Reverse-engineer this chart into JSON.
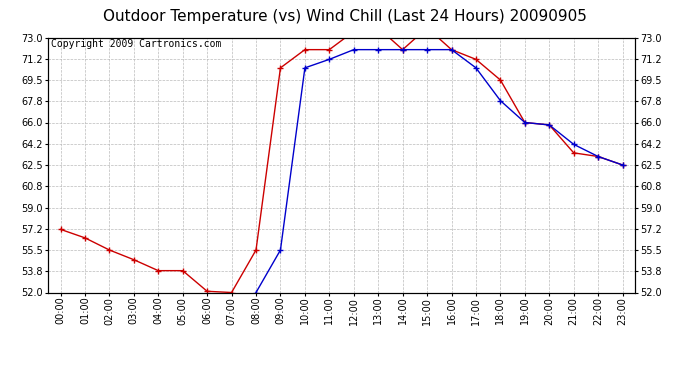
{
  "title": "Outdoor Temperature (vs) Wind Chill (Last 24 Hours) 20090905",
  "copyright": "Copyright 2009 Cartronics.com",
  "hours": [
    "00:00",
    "01:00",
    "02:00",
    "03:00",
    "04:00",
    "05:00",
    "06:00",
    "07:00",
    "08:00",
    "09:00",
    "10:00",
    "11:00",
    "12:00",
    "13:00",
    "14:00",
    "15:00",
    "16:00",
    "17:00",
    "18:00",
    "19:00",
    "20:00",
    "21:00",
    "22:00",
    "23:00"
  ],
  "temp": [
    57.2,
    56.5,
    55.5,
    54.7,
    53.8,
    53.8,
    52.1,
    52.0,
    55.5,
    70.5,
    72.0,
    72.0,
    73.5,
    73.8,
    72.0,
    73.8,
    72.0,
    71.2,
    69.5,
    66.0,
    65.8,
    63.5,
    63.2,
    62.5
  ],
  "windchill": [
    null,
    null,
    null,
    null,
    null,
    null,
    null,
    null,
    52.0,
    55.5,
    70.5,
    71.2,
    72.0,
    72.0,
    72.0,
    72.0,
    72.0,
    70.5,
    67.8,
    66.0,
    65.8,
    64.2,
    63.2,
    62.5
  ],
  "temp_color": "#cc0000",
  "windchill_color": "#0000cc",
  "bg_color": "#ffffff",
  "plot_bg_color": "#ffffff",
  "grid_color": "#bbbbbb",
  "ylim": [
    52.0,
    73.0
  ],
  "yticks": [
    52.0,
    53.8,
    55.5,
    57.2,
    59.0,
    60.8,
    62.5,
    64.2,
    66.0,
    67.8,
    69.5,
    71.2,
    73.0
  ],
  "title_fontsize": 11,
  "copyright_fontsize": 7,
  "tick_fontsize": 7
}
